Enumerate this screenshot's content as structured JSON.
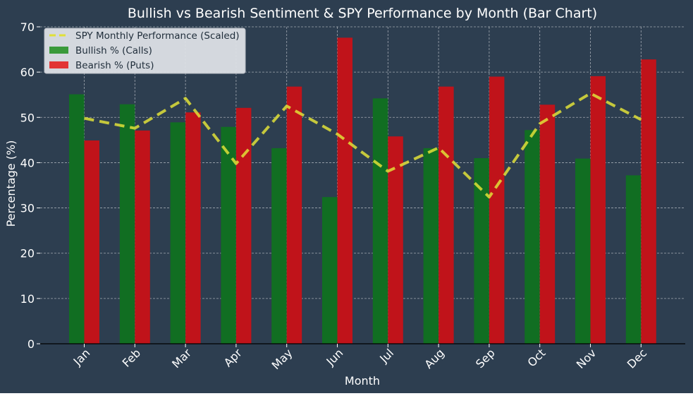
{
  "chart_data": {
    "type": "bar",
    "title": "Bullish vs Bearish Sentiment & SPY Performance by Month (Bar Chart)",
    "xlabel": "Month",
    "ylabel": "Percentage (%)",
    "ylim": [
      0,
      70
    ],
    "yticks": [
      0,
      10,
      20,
      30,
      40,
      50,
      60,
      70
    ],
    "grid": true,
    "legend_position": "top-left",
    "categories": [
      "Jan",
      "Feb",
      "Mar",
      "Apr",
      "May",
      "Jun",
      "Jul",
      "Aug",
      "Sep",
      "Oct",
      "Nov",
      "Dec"
    ],
    "series": [
      {
        "name": "Bullish % (Calls)",
        "kind": "bar",
        "color": "#116e22",
        "legend_color": "#3a9a3a",
        "values": [
          55.1,
          52.9,
          48.9,
          47.9,
          43.2,
          32.4,
          54.2,
          43.2,
          41.0,
          47.2,
          40.9,
          37.2
        ]
      },
      {
        "name": "Bearish % (Puts)",
        "kind": "bar",
        "color": "#c0131a",
        "legend_color": "#e23434",
        "values": [
          44.9,
          47.1,
          51.1,
          52.1,
          56.8,
          67.6,
          45.8,
          56.8,
          59.0,
          52.8,
          59.1,
          62.8
        ]
      },
      {
        "name": "SPY Monthly Performance (Scaled)",
        "kind": "line",
        "style": "dashed",
        "color": "#e0e038",
        "values": [
          49.8,
          47.6,
          54.2,
          39.8,
          52.5,
          46.3,
          38.1,
          43.3,
          32.4,
          48.6,
          55.3,
          49.5
        ]
      }
    ]
  }
}
